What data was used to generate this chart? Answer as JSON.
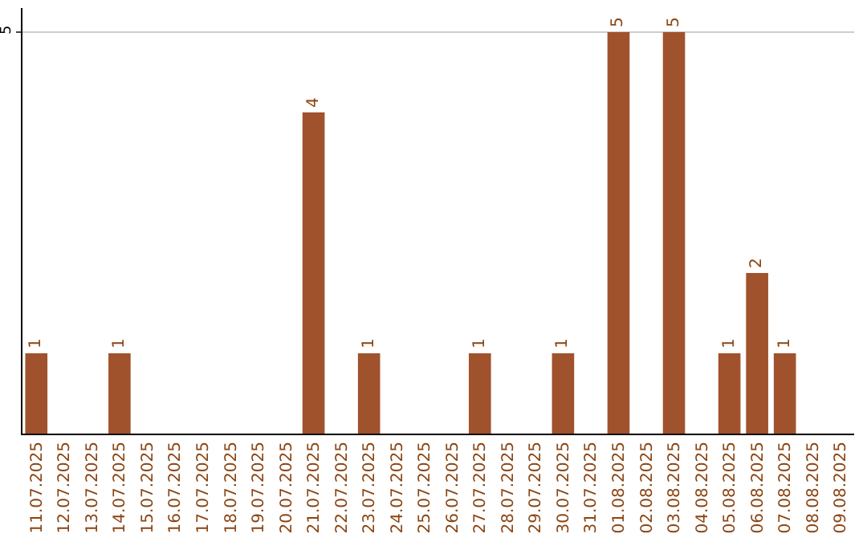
{
  "chart_data": {
    "type": "bar",
    "categories": [
      "11.07.2025",
      "12.07.2025",
      "13.07.2025",
      "14.07.2025",
      "15.07.2025",
      "16.07.2025",
      "17.07.2025",
      "18.07.2025",
      "19.07.2025",
      "20.07.2025",
      "21.07.2025",
      "22.07.2025",
      "23.07.2025",
      "24.07.2025",
      "25.07.2025",
      "26.07.2025",
      "27.07.2025",
      "28.07.2025",
      "29.07.2025",
      "30.07.2025",
      "31.07.2025",
      "01.08.2025",
      "02.08.2025",
      "03.08.2025",
      "04.08.2025",
      "05.08.2025",
      "06.08.2025",
      "07.08.2025",
      "08.08.2025",
      "09.08.2025"
    ],
    "values": [
      1,
      0,
      0,
      1,
      0,
      0,
      0,
      0,
      0,
      0,
      4,
      0,
      1,
      0,
      0,
      0,
      1,
      0,
      0,
      1,
      0,
      5,
      0,
      5,
      0,
      1,
      2,
      1,
      0,
      0
    ],
    "value_labels": [
      "1",
      null,
      null,
      "1",
      null,
      null,
      null,
      null,
      null,
      null,
      "4",
      null,
      "1",
      null,
      null,
      null,
      "1",
      null,
      null,
      "1",
      null,
      "5",
      null,
      "5",
      null,
      "1",
      "2",
      "1",
      null,
      null
    ],
    "color": "#a0522d",
    "ylim": [
      0,
      5.3
    ],
    "yticks": [
      5
    ],
    "grid": "y",
    "legend": false
  }
}
